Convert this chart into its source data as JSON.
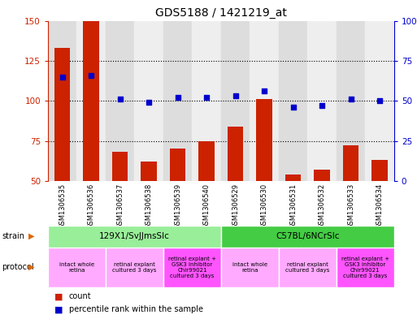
{
  "title": "GDS5188 / 1421219_at",
  "samples": [
    "GSM1306535",
    "GSM1306536",
    "GSM1306537",
    "GSM1306538",
    "GSM1306539",
    "GSM1306540",
    "GSM1306529",
    "GSM1306530",
    "GSM1306531",
    "GSM1306532",
    "GSM1306533",
    "GSM1306534"
  ],
  "count_values": [
    133,
    150,
    68,
    62,
    70,
    75,
    84,
    101,
    54,
    57,
    72,
    63
  ],
  "percentile_values": [
    65,
    66,
    51,
    49,
    52,
    52,
    53,
    56,
    46,
    47,
    51,
    50
  ],
  "ylim_left": [
    50,
    150
  ],
  "ylim_right": [
    0,
    100
  ],
  "yticks_left": [
    50,
    75,
    100,
    125,
    150
  ],
  "yticks_right": [
    0,
    25,
    50,
    75,
    100
  ],
  "bar_color": "#cc2200",
  "dot_color": "#0000cc",
  "bg_color": "#ffffff",
  "strain_groups": [
    {
      "label": "129X1/SvJJmsSlc",
      "start": 0,
      "end": 6,
      "color": "#99ee99"
    },
    {
      "label": "C57BL/6NCrSlc",
      "start": 6,
      "end": 12,
      "color": "#44cc44"
    }
  ],
  "protocol_groups": [
    {
      "label": "intact whole\nretina",
      "start": 0,
      "end": 2,
      "color": "#ffaaff"
    },
    {
      "label": "retinal explant\ncultured 3 days",
      "start": 2,
      "end": 4,
      "color": "#ffaaff"
    },
    {
      "label": "retinal explant +\nGSK3 inhibitor\nChir99021\ncultured 3 days",
      "start": 4,
      "end": 6,
      "color": "#ff55ff"
    },
    {
      "label": "intact whole\nretina",
      "start": 6,
      "end": 8,
      "color": "#ffaaff"
    },
    {
      "label": "retinal explant\ncultured 3 days",
      "start": 8,
      "end": 10,
      "color": "#ffaaff"
    },
    {
      "label": "retinal explant +\nGSK3 inhibitor\nChir99021\ncultured 3 days",
      "start": 10,
      "end": 12,
      "color": "#ff55ff"
    }
  ],
  "legend_count_label": "count",
  "legend_pct_label": "percentile rank within the sample",
  "col_bg_even": "#dddddd",
  "col_bg_odd": "#eeeeee"
}
